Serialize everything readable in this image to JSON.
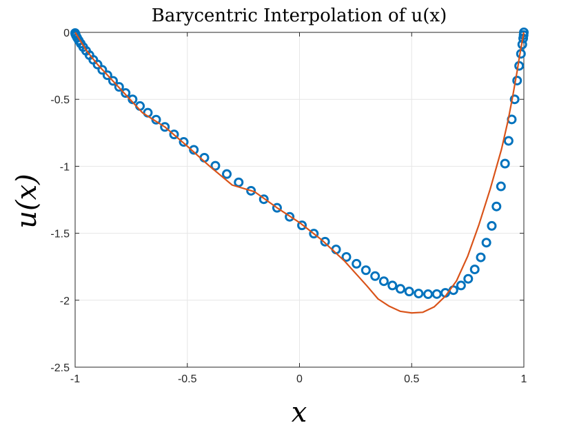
{
  "chart_data": {
    "type": "line",
    "title": "Barycentric Interpolation of u(x)",
    "xlabel": "x",
    "ylabel": "u(x)",
    "xlim": [
      -1,
      1
    ],
    "ylim": [
      -2.5,
      0
    ],
    "grid": true,
    "xticks": [
      -1,
      -0.5,
      0,
      0.5,
      1
    ],
    "xtick_labels": [
      "-1",
      "-0.5",
      "0",
      "0.5",
      "1"
    ],
    "yticks": [
      0,
      -0.5,
      -1,
      -1.5,
      -2,
      -2.5
    ],
    "ytick_labels": [
      "0",
      "-0.5",
      "-1",
      "-1.5",
      "-2",
      "-2.5"
    ],
    "colors": {
      "markers": "#0072BD",
      "curve": "#D95319",
      "grid": "#e6e6e6",
      "axes": "#262626"
    },
    "series": [
      {
        "style": "markers",
        "x": [
          -1.0,
          -0.999,
          -0.996,
          -0.991,
          -0.984,
          -0.975,
          -0.964,
          -0.951,
          -0.936,
          -0.919,
          -0.9,
          -0.879,
          -0.856,
          -0.831,
          -0.804,
          -0.775,
          -0.744,
          -0.711,
          -0.676,
          -0.639,
          -0.6,
          -0.559,
          -0.516,
          -0.471,
          -0.424,
          -0.375,
          -0.324,
          -0.271,
          -0.216,
          -0.159,
          -0.1,
          -0.044,
          0.011,
          0.064,
          0.114,
          0.163,
          0.209,
          0.254,
          0.296,
          0.337,
          0.376,
          0.414,
          0.45,
          0.489,
          0.531,
          0.573,
          0.612,
          0.65,
          0.686,
          0.72,
          0.752,
          0.781,
          0.808,
          0.833,
          0.857,
          0.878,
          0.898,
          0.916,
          0.932,
          0.946,
          0.959,
          0.97,
          0.979,
          0.987,
          0.993,
          0.997,
          0.999,
          1.0
        ],
        "y": [
          -0.005,
          -0.012,
          -0.024,
          -0.04,
          -0.06,
          -0.083,
          -0.11,
          -0.138,
          -0.17,
          -0.205,
          -0.24,
          -0.28,
          -0.32,
          -0.362,
          -0.407,
          -0.453,
          -0.5,
          -0.55,
          -0.6,
          -0.652,
          -0.706,
          -0.762,
          -0.818,
          -0.877,
          -0.936,
          -0.996,
          -1.058,
          -1.12,
          -1.183,
          -1.246,
          -1.31,
          -1.377,
          -1.441,
          -1.503,
          -1.563,
          -1.621,
          -1.677,
          -1.728,
          -1.776,
          -1.82,
          -1.858,
          -1.89,
          -1.915,
          -1.935,
          -1.95,
          -1.955,
          -1.954,
          -1.945,
          -1.925,
          -1.89,
          -1.84,
          -1.77,
          -1.68,
          -1.57,
          -1.445,
          -1.3,
          -1.15,
          -0.98,
          -0.81,
          -0.65,
          -0.5,
          -0.36,
          -0.25,
          -0.16,
          -0.09,
          -0.045,
          -0.02,
          0.0
        ]
      },
      {
        "style": "line",
        "x": [
          -1.0,
          -0.95,
          -0.9,
          -0.8,
          -0.7,
          -0.6,
          -0.5,
          -0.4,
          -0.3,
          -0.2,
          -0.1,
          0.0,
          0.1,
          0.2,
          0.3,
          0.35,
          0.4,
          0.45,
          0.5,
          0.55,
          0.6,
          0.65,
          0.7,
          0.75,
          0.8,
          0.85,
          0.9,
          0.93,
          0.95,
          0.97,
          0.98,
          0.99,
          1.0
        ],
        "y": [
          0.0,
          -0.135,
          -0.24,
          -0.42,
          -0.6,
          -0.706,
          -0.85,
          -1.0,
          -1.14,
          -1.19,
          -1.31,
          -1.42,
          -1.551,
          -1.706,
          -1.892,
          -1.99,
          -2.045,
          -2.083,
          -2.095,
          -2.09,
          -2.05,
          -1.97,
          -1.855,
          -1.67,
          -1.435,
          -1.17,
          -0.875,
          -0.655,
          -0.48,
          -0.29,
          -0.185,
          -0.09,
          0.0
        ]
      }
    ]
  }
}
